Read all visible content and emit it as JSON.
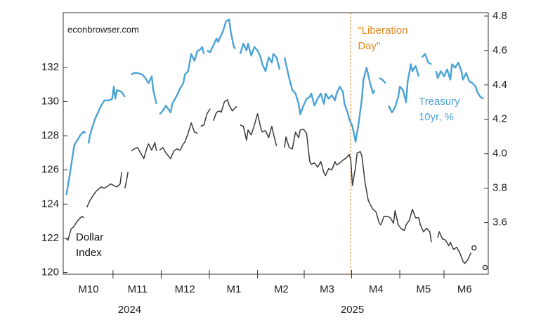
{
  "chart_data": {
    "type": "line",
    "source": "econbrowser.com",
    "xlim": [
      -1,
      268
    ],
    "xticks": [
      {
        "value": 15,
        "label": "M10"
      },
      {
        "value": 46,
        "label": "M11"
      },
      {
        "value": 76,
        "label": "M12"
      },
      {
        "value": 107,
        "label": "M1"
      },
      {
        "value": 137,
        "label": "M2"
      },
      {
        "value": 166,
        "label": "M3"
      },
      {
        "value": 197,
        "label": "M4"
      },
      {
        "value": 227,
        "label": "M5"
      },
      {
        "value": 253,
        "label": "M6"
      }
    ],
    "year_labels": [
      {
        "value": 41,
        "label": "2024"
      },
      {
        "value": 182,
        "label": "2025"
      }
    ],
    "ylim": [
      119.9,
      135.2
    ],
    "yticks": [
      120,
      122,
      124,
      126,
      128,
      130,
      132
    ],
    "y2lim": [
      3.3,
      4.82
    ],
    "y2ticks": [
      3.6,
      3.8,
      {
        "value": 4,
        "label": "4.0"
      },
      4.2,
      4.4,
      4.6,
      4.8
    ],
    "event": {
      "x": 181,
      "lines": [
        "\"Liberation",
        "Day\""
      ],
      "color": "#e0891c"
    },
    "series": [
      {
        "label": [
          "Treasury",
          "10yr, %"
        ],
        "color": "#4aa3d4",
        "axis": "y2",
        "x": [
          1,
          3,
          6,
          8,
          10,
          12,
          13,
          null,
          15,
          16,
          19,
          21,
          23,
          25,
          28,
          30,
          31,
          32,
          33,
          36,
          38,
          null,
          42,
          44,
          46,
          49,
          51,
          53,
          55,
          56,
          58,
          null,
          60,
          62,
          64,
          67,
          68,
          71,
          73,
          75,
          76,
          78,
          80,
          82,
          84,
          85,
          87,
          88,
          null,
          90,
          92,
          94,
          96,
          97,
          99,
          100,
          102,
          104,
          105,
          107,
          108,
          null,
          111,
          113,
          115,
          116,
          118,
          120,
          122,
          124,
          125,
          127,
          129,
          131,
          132,
          134,
          136,
          null,
          139,
          140,
          142,
          144,
          146,
          148,
          149,
          151,
          153,
          155,
          156,
          158,
          160,
          162,
          164,
          165,
          167,
          169,
          171,
          172,
          174,
          176,
          177,
          179,
          180,
          182,
          184,
          186,
          188,
          189,
          191,
          193,
          195,
          196,
          null,
          199,
          201,
          203,
          null,
          205,
          207,
          209,
          211,
          212,
          214,
          216,
          217,
          219,
          220,
          222,
          224,
          null,
          226,
          228,
          230,
          232,
          null,
          235,
          236,
          238,
          240,
          242,
          244,
          245,
          247,
          249,
          251,
          252,
          254,
          256,
          258,
          260,
          261,
          263,
          265
        ],
        "values": [
          3.76,
          3.87,
          4.05,
          4.08,
          4.11,
          4.13,
          4.12,
          null,
          4.06,
          4.11,
          4.2,
          4.24,
          4.28,
          4.31,
          4.31,
          4.32,
          4.39,
          4.32,
          4.37,
          4.36,
          4.33,
          null,
          4.46,
          4.47,
          4.47,
          4.46,
          4.44,
          4.41,
          4.45,
          4.37,
          4.29,
          null,
          4.23,
          4.25,
          4.28,
          4.24,
          4.29,
          4.34,
          4.38,
          4.41,
          4.46,
          4.48,
          4.58,
          4.54,
          4.6,
          4.6,
          4.62,
          4.58,
          null,
          4.6,
          4.59,
          4.63,
          4.67,
          4.65,
          4.69,
          4.71,
          4.77,
          4.78,
          4.71,
          4.62,
          4.61,
          null,
          4.58,
          4.64,
          4.6,
          4.64,
          4.57,
          4.62,
          4.6,
          4.56,
          4.52,
          4.48,
          4.56,
          4.53,
          4.58,
          4.56,
          4.49,
          null,
          4.56,
          4.52,
          4.44,
          4.37,
          4.35,
          4.29,
          4.23,
          4.28,
          4.32,
          4.33,
          4.35,
          4.28,
          4.32,
          4.35,
          4.29,
          4.35,
          4.32,
          4.34,
          4.31,
          4.35,
          4.39,
          4.36,
          4.29,
          4.24,
          4.2,
          4.16,
          4.07,
          4.18,
          4.32,
          4.43,
          4.5,
          4.42,
          4.35,
          4.37,
          null,
          4.44,
          4.43,
          4.41,
          null,
          4.28,
          4.24,
          4.27,
          4.33,
          4.39,
          4.37,
          4.3,
          4.42,
          4.52,
          4.48,
          4.51,
          4.45,
          null,
          4.56,
          4.58,
          4.53,
          4.52,
          null,
          4.48,
          4.44,
          4.48,
          4.45,
          4.49,
          4.43,
          4.52,
          4.5,
          4.53,
          4.48,
          4.43,
          4.47,
          4.42,
          4.41,
          4.39,
          4.36,
          4.33,
          4.32
        ]
      },
      {
        "label": [
          "Dollar",
          "Index"
        ],
        "color": "#3a3a3a",
        "x": [
          1,
          2,
          4,
          6,
          7,
          9,
          11,
          12,
          null,
          14,
          16,
          18,
          20,
          21,
          23,
          25,
          27,
          29,
          31,
          33,
          35,
          36,
          null,
          38,
          39,
          40,
          null,
          42,
          44,
          46,
          48,
          50,
          52,
          53,
          55,
          57,
          58,
          null,
          60,
          62,
          64,
          67,
          69,
          71,
          73,
          75,
          76,
          78,
          80,
          82,
          84,
          null,
          86,
          88,
          90,
          92,
          null,
          94,
          96,
          98,
          99,
          101,
          103,
          104,
          106,
          108,
          109,
          null,
          111,
          113,
          115,
          116,
          118,
          120,
          122,
          124,
          125,
          127,
          129,
          131,
          132,
          134,
          null,
          139,
          140,
          142,
          144,
          146,
          148,
          149,
          151,
          153,
          155,
          156,
          158,
          160,
          162,
          164,
          165,
          167,
          169,
          171,
          172,
          174,
          176,
          178,
          180,
          181,
          182,
          184,
          185,
          187,
          188,
          190,
          192,
          193,
          195,
          197,
          199,
          200,
          202,
          204,
          206,
          208,
          209,
          211,
          213,
          215,
          216,
          218,
          220,
          222,
          224,
          225,
          227,
          229,
          231,
          232,
          null,
          236,
          237,
          239,
          241,
          243,
          244,
          246,
          248,
          250,
          252,
          253,
          255,
          257,
          null,
          259,
          null,
          266
        ],
        "values": [
          121.97,
          121.89,
          122.55,
          122.71,
          122.88,
          123.12,
          123.29,
          123.2,
          null,
          123.82,
          124.23,
          124.52,
          124.77,
          124.85,
          125.01,
          124.93,
          125.05,
          125.18,
          125.09,
          125.01,
          125.18,
          125.88,
          null,
          124.93,
          125.34,
          125.88,
          null,
          127.11,
          127.23,
          127.31,
          126.99,
          126.66,
          127.31,
          127.52,
          127.15,
          127.6,
          127.11,
          null,
          127.15,
          127.31,
          126.99,
          126.66,
          127.11,
          127.23,
          127.15,
          127.52,
          127.64,
          128.14,
          128.75,
          128.22,
          128.14,
          null,
          128.55,
          128.63,
          129.29,
          129.58,
          null,
          128.88,
          129.37,
          129.45,
          129.37,
          129.99,
          130.11,
          129.78,
          129.45,
          129.66,
          129.7,
          null,
          128.63,
          128.55,
          127.73,
          128.34,
          128.05,
          128.63,
          129.29,
          128.47,
          128.22,
          128.3,
          127.89,
          128.55,
          128.14,
          127.4,
          null,
          127.31,
          127.93,
          127.31,
          127.23,
          128.22,
          127.89,
          128.34,
          128.38,
          128.14,
          126.49,
          126.33,
          126.41,
          126.16,
          126.49,
          125.83,
          125.67,
          126.08,
          126.0,
          126.49,
          126.29,
          126.41,
          126.57,
          126.7,
          126.9,
          126.57,
          125.09,
          126.16,
          126.99,
          127.07,
          126.82,
          125.26,
          124.23,
          124.03,
          123.7,
          123.53,
          122.88,
          122.79,
          123.29,
          123.29,
          123.2,
          122.88,
          123.62,
          122.79,
          122.55,
          122.46,
          122.79,
          123.04,
          123.7,
          123.2,
          123.2,
          122.79,
          122.38,
          122.59,
          122.38,
          121.77,
          null,
          122.05,
          122.38,
          121.97,
          121.89,
          121.56,
          121.77,
          121.35,
          121.48,
          121.15,
          120.66,
          120.53,
          120.74,
          121.15,
          null,
          121.44,
          null,
          120.29
        ]
      }
    ]
  }
}
